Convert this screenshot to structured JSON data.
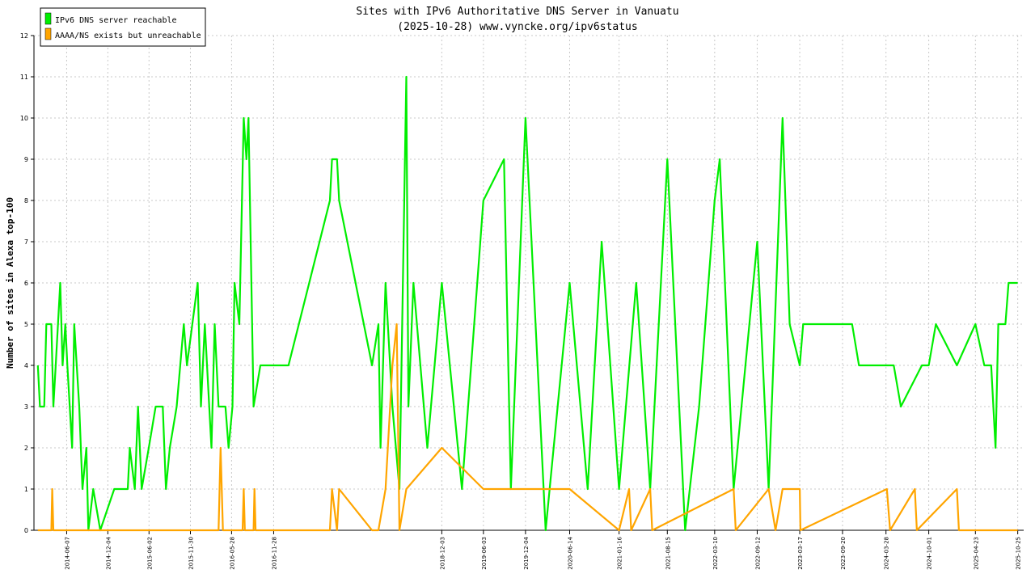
{
  "chart_data": {
    "type": "line",
    "title": "Sites with IPv6 Authoritative DNS Server in Vanuatu",
    "subtitle": "(2025-10-28) www.vyncke.org/ipv6status",
    "ylabel": "Number of sites in Alexa top-100",
    "xlabel": "",
    "ylim": [
      0,
      12
    ],
    "yticks": [
      0,
      1,
      2,
      3,
      4,
      5,
      6,
      7,
      8,
      9,
      10,
      11,
      12
    ],
    "xlim": [
      "2014-01-15",
      "2025-11-20"
    ],
    "x_tick_labels": [
      "2014-06-07",
      "2014-12-04",
      "2015-06-02",
      "2015-11-30",
      "2016-05-28",
      "2016-11-28",
      "2018-12-03",
      "2019-06-03",
      "2019-12-04",
      "2020-06-14",
      "2021-01-16",
      "2021-08-15",
      "2022-03-10",
      "2022-09-12",
      "2023-03-17",
      "2023-09-20",
      "2024-03-28",
      "2024-10-01",
      "2025-04-23",
      "2025-10-25"
    ],
    "grid": true,
    "legend_position": "top-left",
    "series": [
      {
        "name": "IPv6 DNS server reachable",
        "color": "#00ee00",
        "points": [
          [
            "2014-02-01",
            4
          ],
          [
            "2014-02-10",
            3
          ],
          [
            "2014-03-01",
            3
          ],
          [
            "2014-03-10",
            5
          ],
          [
            "2014-04-01",
            5
          ],
          [
            "2014-04-10",
            3
          ],
          [
            "2014-04-20",
            4
          ],
          [
            "2014-05-10",
            6
          ],
          [
            "2014-05-20",
            4
          ],
          [
            "2014-06-01",
            5
          ],
          [
            "2014-06-10",
            4
          ],
          [
            "2014-07-01",
            2
          ],
          [
            "2014-07-10",
            5
          ],
          [
            "2014-08-01",
            3
          ],
          [
            "2014-08-15",
            1
          ],
          [
            "2014-09-01",
            2
          ],
          [
            "2014-09-10",
            0
          ],
          [
            "2014-10-01",
            1
          ],
          [
            "2014-11-01",
            0
          ],
          [
            "2015-01-01",
            1
          ],
          [
            "2015-03-01",
            1
          ],
          [
            "2015-03-10",
            2
          ],
          [
            "2015-04-01",
            1
          ],
          [
            "2015-04-15",
            3
          ],
          [
            "2015-05-01",
            1
          ],
          [
            "2015-06-01",
            2
          ],
          [
            "2015-07-01",
            3
          ],
          [
            "2015-08-01",
            3
          ],
          [
            "2015-08-15",
            1
          ],
          [
            "2015-09-01",
            2
          ],
          [
            "2015-10-01",
            3
          ],
          [
            "2015-11-01",
            5
          ],
          [
            "2015-11-15",
            4
          ],
          [
            "2016-01-01",
            6
          ],
          [
            "2016-01-15",
            3
          ],
          [
            "2016-02-01",
            5
          ],
          [
            "2016-03-01",
            2
          ],
          [
            "2016-03-15",
            5
          ],
          [
            "2016-04-01",
            3
          ],
          [
            "2016-05-01",
            3
          ],
          [
            "2016-05-15",
            2
          ],
          [
            "2016-06-01",
            3
          ],
          [
            "2016-06-10",
            6
          ],
          [
            "2016-07-01",
            5
          ],
          [
            "2016-07-20",
            10
          ],
          [
            "2016-08-01",
            9
          ],
          [
            "2016-08-10",
            10
          ],
          [
            "2016-09-01",
            3
          ],
          [
            "2016-10-01",
            4
          ],
          [
            "2017-02-01",
            4
          ],
          [
            "2017-08-01",
            8
          ],
          [
            "2017-08-10",
            9
          ],
          [
            "2017-09-01",
            9
          ],
          [
            "2017-09-10",
            8
          ],
          [
            "2018-02-01",
            4
          ],
          [
            "2018-03-01",
            5
          ],
          [
            "2018-03-10",
            2
          ],
          [
            "2018-04-01",
            6
          ],
          [
            "2018-05-01",
            3
          ],
          [
            "2018-06-01",
            1
          ],
          [
            "2018-07-01",
            11
          ],
          [
            "2018-07-10",
            3
          ],
          [
            "2018-08-01",
            6
          ],
          [
            "2018-10-01",
            2
          ],
          [
            "2018-12-03",
            6
          ],
          [
            "2019-03-01",
            1
          ],
          [
            "2019-06-03",
            8
          ],
          [
            "2019-09-01",
            9
          ],
          [
            "2019-10-01",
            1
          ],
          [
            "2019-12-04",
            10
          ],
          [
            "2020-03-01",
            0
          ],
          [
            "2020-06-14",
            6
          ],
          [
            "2020-09-01",
            1
          ],
          [
            "2020-11-01",
            7
          ],
          [
            "2021-01-16",
            1
          ],
          [
            "2021-04-01",
            6
          ],
          [
            "2021-06-01",
            1
          ],
          [
            "2021-08-15",
            9
          ],
          [
            "2021-11-01",
            0
          ],
          [
            "2022-01-01",
            3
          ],
          [
            "2022-03-10",
            8
          ],
          [
            "2022-04-01",
            9
          ],
          [
            "2022-06-01",
            1
          ],
          [
            "2022-09-12",
            7
          ],
          [
            "2022-11-01",
            1
          ],
          [
            "2023-01-01",
            10
          ],
          [
            "2023-02-01",
            5
          ],
          [
            "2023-03-17",
            4
          ],
          [
            "2023-04-01",
            5
          ],
          [
            "2023-11-01",
            5
          ],
          [
            "2023-12-01",
            4
          ],
          [
            "2024-05-01",
            4
          ],
          [
            "2024-06-01",
            3
          ],
          [
            "2024-09-01",
            4
          ],
          [
            "2024-10-01",
            4
          ],
          [
            "2024-11-01",
            5
          ],
          [
            "2025-02-01",
            4
          ],
          [
            "2025-04-23",
            5
          ],
          [
            "2025-06-01",
            4
          ],
          [
            "2025-07-01",
            4
          ],
          [
            "2025-07-20",
            2
          ],
          [
            "2025-08-01",
            5
          ],
          [
            "2025-09-01",
            5
          ],
          [
            "2025-09-15",
            6
          ],
          [
            "2025-10-25",
            6
          ]
        ]
      },
      {
        "name": "AAAA/NS exists but unreachable",
        "color": "#ffa500",
        "points": [
          [
            "2014-02-01",
            0
          ],
          [
            "2014-04-01",
            0
          ],
          [
            "2014-04-05",
            1
          ],
          [
            "2014-04-10",
            0
          ],
          [
            "2016-04-01",
            0
          ],
          [
            "2016-04-10",
            2
          ],
          [
            "2016-04-20",
            0
          ],
          [
            "2016-07-15",
            0
          ],
          [
            "2016-07-20",
            1
          ],
          [
            "2016-07-25",
            0
          ],
          [
            "2016-09-01",
            0
          ],
          [
            "2016-09-05",
            1
          ],
          [
            "2016-09-10",
            0
          ],
          [
            "2017-08-01",
            0
          ],
          [
            "2017-08-10",
            1
          ],
          [
            "2017-09-01",
            0
          ],
          [
            "2017-09-10",
            1
          ],
          [
            "2018-02-01",
            0
          ],
          [
            "2018-03-01",
            0
          ],
          [
            "2018-04-01",
            1
          ],
          [
            "2018-05-01",
            4
          ],
          [
            "2018-05-20",
            5
          ],
          [
            "2018-06-01",
            0
          ],
          [
            "2018-07-01",
            1
          ],
          [
            "2018-12-03",
            2
          ],
          [
            "2019-06-03",
            1
          ],
          [
            "2019-09-01",
            1
          ],
          [
            "2019-12-04",
            1
          ],
          [
            "2020-06-14",
            1
          ],
          [
            "2021-01-16",
            0
          ],
          [
            "2021-03-01",
            1
          ],
          [
            "2021-03-10",
            0
          ],
          [
            "2021-06-01",
            1
          ],
          [
            "2021-06-10",
            0
          ],
          [
            "2022-06-01",
            1
          ],
          [
            "2022-06-10",
            0
          ],
          [
            "2022-11-01",
            1
          ],
          [
            "2022-12-01",
            0
          ],
          [
            "2023-01-01",
            1
          ],
          [
            "2023-03-17",
            1
          ],
          [
            "2023-03-20",
            0
          ],
          [
            "2024-04-01",
            1
          ],
          [
            "2024-04-15",
            0
          ],
          [
            "2024-08-01",
            1
          ],
          [
            "2024-08-10",
            0
          ],
          [
            "2025-02-01",
            1
          ],
          [
            "2025-02-10",
            0
          ],
          [
            "2025-10-25",
            0
          ]
        ]
      }
    ]
  }
}
